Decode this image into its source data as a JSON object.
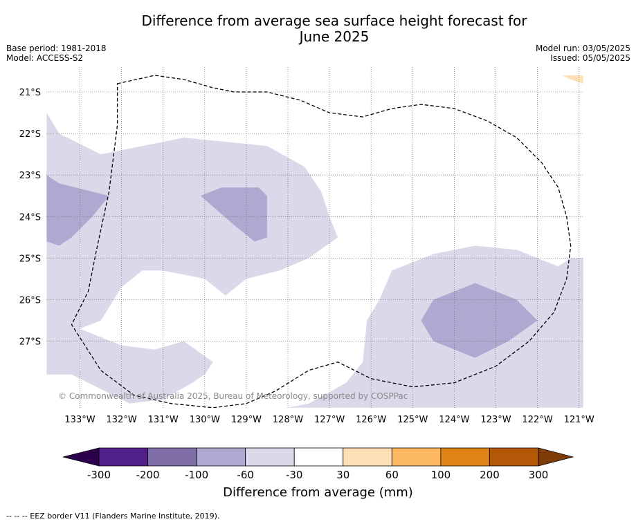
{
  "header": {
    "title_line1": "Difference from average sea surface height forecast for",
    "title_line2": "June 2025",
    "base_period": "Base period: 1981-2018",
    "model": "Model: ACCESS-S2",
    "model_run": "Model run: 03/05/2025",
    "issued": "Issued: 05/05/2025"
  },
  "chart_data": {
    "type": "heatmap",
    "title": "Difference from average sea surface height forecast for June 2025",
    "lon_range": [
      -133.8,
      -120.9
    ],
    "lat_range": [
      -28.6,
      -20.6
    ],
    "x_ticks": [
      {
        "value": -133,
        "label": "133°W"
      },
      {
        "value": -132,
        "label": "132°W"
      },
      {
        "value": -131,
        "label": "131°W"
      },
      {
        "value": -130,
        "label": "130°W"
      },
      {
        "value": -129,
        "label": "129°W"
      },
      {
        "value": -128,
        "label": "128°W"
      },
      {
        "value": -127,
        "label": "127°W"
      },
      {
        "value": -126,
        "label": "126°W"
      },
      {
        "value": -125,
        "label": "125°W"
      },
      {
        "value": -124,
        "label": "124°W"
      },
      {
        "value": -123,
        "label": "123°W"
      },
      {
        "value": -122,
        "label": "122°W"
      },
      {
        "value": -121,
        "label": "121°W"
      }
    ],
    "y_ticks": [
      {
        "value": -21,
        "label": "21°S"
      },
      {
        "value": -22,
        "label": "22°S"
      },
      {
        "value": -23,
        "label": "23°S"
      },
      {
        "value": -24,
        "label": "24°S"
      },
      {
        "value": -25,
        "label": "25°S"
      },
      {
        "value": -26,
        "label": "26°S"
      },
      {
        "value": -27,
        "label": "27°S"
      }
    ],
    "grid": true,
    "colorbar": {
      "label": "Difference from average (mm)",
      "tick_labels": [
        "-300",
        "-200",
        "-100",
        "-60",
        "-30",
        "30",
        "60",
        "100",
        "200",
        "300"
      ],
      "colors": [
        "#52208a",
        "#7f6ea8",
        "#afa8d0",
        "#d9d9ea",
        "#ffffff",
        "#fee0b6",
        "#fdb863",
        "#e08214",
        "#b35806"
      ],
      "under_color": "#2d004b",
      "over_color": "#7f3b08"
    },
    "regions": [
      {
        "level": "-60 to -30",
        "color": "#d9d9ea",
        "polygon": [
          [
            -133.8,
            -21.5
          ],
          [
            -133.5,
            -22.0
          ],
          [
            -132.5,
            -22.5
          ],
          [
            -130.5,
            -22.1
          ],
          [
            -129.5,
            -22.2
          ],
          [
            -128.5,
            -22.3
          ],
          [
            -127.6,
            -22.8
          ],
          [
            -127.2,
            -23.4
          ],
          [
            -127.0,
            -24.0
          ],
          [
            -126.8,
            -24.5
          ],
          [
            -127.5,
            -25.0
          ],
          [
            -128.2,
            -25.3
          ],
          [
            -129.0,
            -25.5
          ],
          [
            -129.5,
            -25.9
          ],
          [
            -130.0,
            -25.5
          ],
          [
            -131.0,
            -25.3
          ],
          [
            -131.5,
            -25.3
          ],
          [
            -132.0,
            -25.7
          ],
          [
            -132.5,
            -26.5
          ],
          [
            -133.0,
            -26.7
          ],
          [
            -132.0,
            -27.1
          ],
          [
            -131.2,
            -27.2
          ],
          [
            -130.5,
            -27.0
          ],
          [
            -129.8,
            -27.5
          ],
          [
            -130.0,
            -27.8
          ],
          [
            -130.3,
            -28.0
          ],
          [
            -131.0,
            -28.4
          ],
          [
            -131.8,
            -28.5
          ],
          [
            -132.6,
            -28.1
          ],
          [
            -133.2,
            -27.8
          ],
          [
            -133.8,
            -27.8
          ]
        ]
      },
      {
        "level": "-60 to -30",
        "color": "#d9d9ea",
        "polygon": [
          [
            -120.9,
            -25.0
          ],
          [
            -121.2,
            -25.0
          ],
          [
            -121.5,
            -25.2
          ],
          [
            -122.5,
            -24.8
          ],
          [
            -123.5,
            -24.7
          ],
          [
            -124.5,
            -24.9
          ],
          [
            -125.5,
            -25.3
          ],
          [
            -125.8,
            -26.0
          ],
          [
            -126.1,
            -26.5
          ],
          [
            -126.2,
            -27.5
          ],
          [
            -126.6,
            -28.0
          ],
          [
            -127.5,
            -28.5
          ],
          [
            -128.0,
            -28.6
          ],
          [
            -120.9,
            -28.6
          ]
        ]
      },
      {
        "level": "-100 to -60",
        "color": "#afa8d0",
        "polygon": [
          [
            -133.8,
            -23.0
          ],
          [
            -133.5,
            -23.2
          ],
          [
            -132.3,
            -23.5
          ],
          [
            -132.7,
            -24.0
          ],
          [
            -133.2,
            -24.5
          ],
          [
            -133.5,
            -24.7
          ],
          [
            -133.8,
            -24.6
          ]
        ]
      },
      {
        "level": "-100 to -60",
        "color": "#afa8d0",
        "polygon": [
          [
            -130.1,
            -23.5
          ],
          [
            -129.6,
            -23.3
          ],
          [
            -128.7,
            -23.3
          ],
          [
            -128.5,
            -23.5
          ],
          [
            -128.5,
            -24.5
          ],
          [
            -128.8,
            -24.6
          ],
          [
            -129.3,
            -24.2
          ]
        ]
      },
      {
        "level": "-100 to -60",
        "color": "#afa8d0",
        "polygon": [
          [
            -124.8,
            -26.5
          ],
          [
            -124.5,
            -26.0
          ],
          [
            -123.5,
            -25.6
          ],
          [
            -122.5,
            -26.0
          ],
          [
            -122.0,
            -26.5
          ],
          [
            -122.7,
            -27.0
          ],
          [
            -123.5,
            -27.4
          ],
          [
            -124.5,
            -27.0
          ]
        ]
      },
      {
        "level": "30 to 60",
        "color": "#fee0b6",
        "polygon": [
          [
            -121.4,
            -20.6
          ],
          [
            -121.2,
            -20.7
          ],
          [
            -120.9,
            -20.8
          ],
          [
            -120.9,
            -20.6
          ]
        ]
      }
    ],
    "eez_border": [
      [
        -132.1,
        -20.8
      ],
      [
        -131.2,
        -20.6
      ],
      [
        -130.5,
        -20.7
      ],
      [
        -129.8,
        -20.9
      ],
      [
        -129.3,
        -21.0
      ],
      [
        -128.5,
        -21.0
      ],
      [
        -127.7,
        -21.2
      ],
      [
        -127.0,
        -21.5
      ],
      [
        -126.2,
        -21.6
      ],
      [
        -125.5,
        -21.4
      ],
      [
        -124.8,
        -21.3
      ],
      [
        -124.0,
        -21.4
      ],
      [
        -123.2,
        -21.7
      ],
      [
        -122.5,
        -22.1
      ],
      [
        -121.9,
        -22.7
      ],
      [
        -121.5,
        -23.3
      ],
      [
        -121.3,
        -24.0
      ],
      [
        -121.2,
        -24.7
      ],
      [
        -121.3,
        -25.5
      ],
      [
        -121.6,
        -26.3
      ],
      [
        -122.2,
        -27.0
      ],
      [
        -123.0,
        -27.6
      ],
      [
        -124.0,
        -28.0
      ],
      [
        -125.0,
        -28.1
      ],
      [
        -126.0,
        -27.9
      ],
      [
        -126.8,
        -27.5
      ],
      [
        -127.5,
        -27.7
      ],
      [
        -128.3,
        -28.2
      ],
      [
        -129.0,
        -28.5
      ],
      [
        -129.8,
        -28.6
      ],
      [
        -130.8,
        -28.5
      ],
      [
        -131.7,
        -28.3
      ],
      [
        -132.5,
        -27.7
      ],
      [
        -133.2,
        -26.6
      ],
      [
        -132.8,
        -25.8
      ],
      [
        -132.6,
        -24.8
      ],
      [
        -132.3,
        -23.4
      ],
      [
        -132.1,
        -21.8
      ]
    ],
    "watermark": "© Commonwealth of Australia 2025, Bureau of Meteorology, supported by COSPPac"
  },
  "footnote": "--  --  -- EEZ border V11 (Flanders Marine Institute, 2019)."
}
